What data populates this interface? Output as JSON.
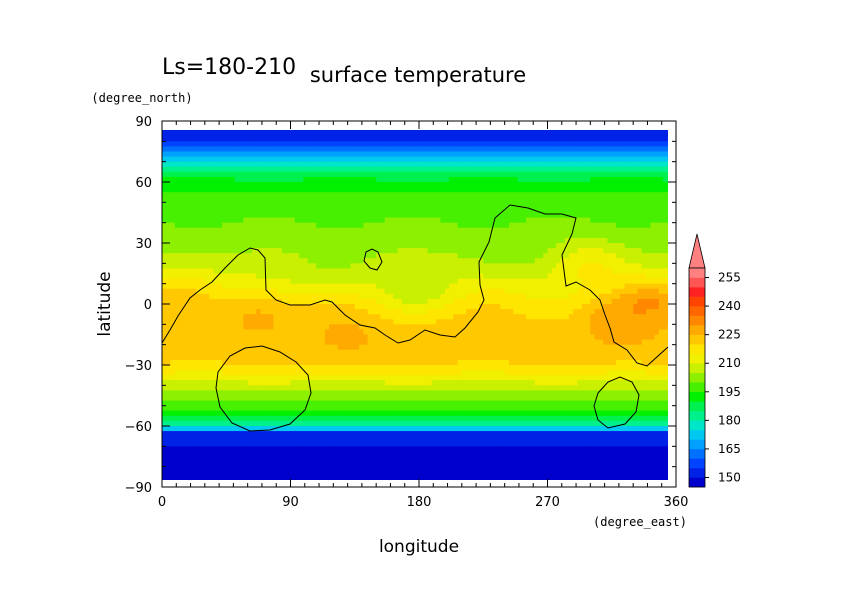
{
  "chart_data": {
    "type": "heatmap",
    "title": "surface temperature",
    "subtitle": "Ls=180-210",
    "xlabel": "longitude",
    "ylabel": "latitude",
    "xunit": "(degree_east)",
    "yunit": "(degree_north)",
    "xlim": [
      0,
      360
    ],
    "ylim": [
      -90,
      90
    ],
    "x_ticks": [
      "0",
      "90",
      "180",
      "270",
      "360"
    ],
    "y_ticks": [
      "90",
      "60",
      "30",
      "0",
      "−30",
      "−60",
      "−90"
    ],
    "colorbar": {
      "labels": [
        "150",
        "165",
        "180",
        "195",
        "210",
        "225",
        "240",
        "255"
      ],
      "levels": [
        145,
        150,
        155,
        160,
        165,
        170,
        175,
        180,
        185,
        190,
        195,
        200,
        205,
        210,
        215,
        220,
        225,
        230,
        235,
        240,
        245,
        250,
        255,
        260
      ],
      "colors": [
        "#0000cc",
        "#0022e6",
        "#0044ff",
        "#0070ff",
        "#00a0ff",
        "#00c8f0",
        "#00e6c8",
        "#00f08c",
        "#00f050",
        "#00f000",
        "#46f000",
        "#8cf000",
        "#c8f000",
        "#f0f000",
        "#ffe600",
        "#ffc800",
        "#ffaa00",
        "#ff8800",
        "#ff6600",
        "#ff4400",
        "#ff2222",
        "#ff5555",
        "#ff8080"
      ],
      "extend_color": "#ff8080"
    },
    "latitude_profile": {
      "lat": [
        -88,
        -80,
        -70,
        -64,
        -61,
        -55,
        -50,
        -40,
        -30,
        -20,
        -10,
        0,
        10,
        20,
        30,
        40,
        50,
        60,
        65,
        70,
        75,
        80,
        85,
        88
      ],
      "value": [
        148,
        148,
        150,
        153,
        175,
        192,
        198,
        208,
        220,
        223,
        222,
        218,
        212,
        207,
        203,
        200,
        198,
        192,
        184,
        175,
        165,
        155,
        150,
        150
      ]
    },
    "warm_spots": [
      {
        "lon": 70,
        "lat": -7,
        "value": 228
      },
      {
        "lon": 130,
        "lat": -20,
        "value": 227
      },
      {
        "lon": 320,
        "lat": -10,
        "value": 229
      },
      {
        "lon": 345,
        "lat": 0,
        "value": 230
      },
      {
        "lon": 8,
        "lat": 2,
        "value": 222
      },
      {
        "lon": 300,
        "lat": 20,
        "value": 220
      }
    ],
    "cool_spots": [
      {
        "lon": 180,
        "lat": 10,
        "value": 207
      },
      {
        "lon": 120,
        "lat": 20,
        "value": 203
      },
      {
        "lon": 250,
        "lat": 30,
        "value": 200
      }
    ]
  }
}
